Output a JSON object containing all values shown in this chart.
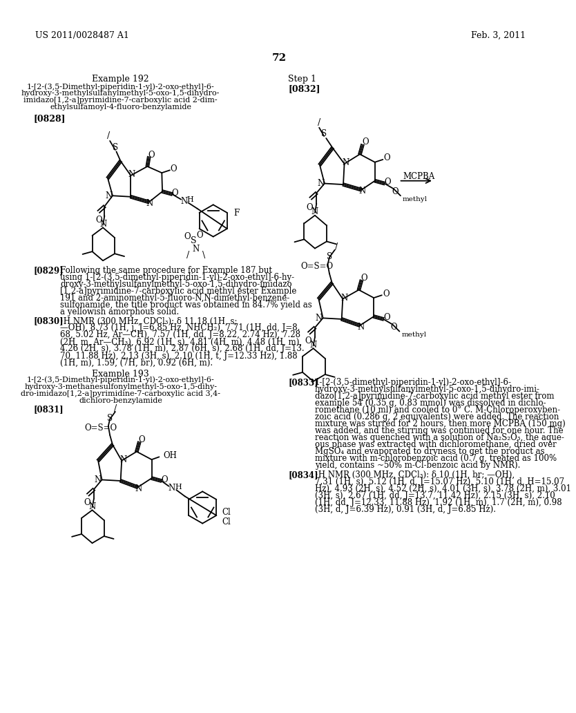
{
  "background_color": "#ffffff",
  "page_number": "72",
  "header_left": "US 2011/0028487 A1",
  "header_right": "Feb. 3, 2011"
}
